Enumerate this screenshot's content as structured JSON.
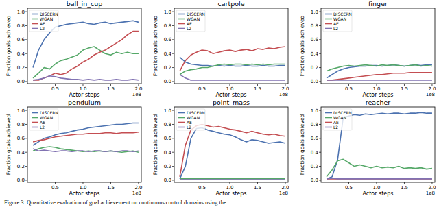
{
  "caption": "Figure 3: Quantitative evaluation of goal achievement on continuous control domains using the",
  "chart_data": [
    {
      "type": "line",
      "title": "ball_in_cup",
      "x_label": "Actor steps",
      "y_label": "Fraction goals achieved",
      "x_scale_label": "1e8",
      "legend": "upper left",
      "xlim": [
        0,
        2.05
      ],
      "ylim": [
        -0.03,
        1.05
      ],
      "xticks": [
        0.5,
        {
          "value": 1,
          "label": "1.0"
        },
        1.5,
        {
          "value": 2,
          "label": "2.0"
        }
      ],
      "yticks": [
        {
          "value": 0,
          "label": "0.0"
        },
        0.2,
        0.4,
        0.6,
        0.8,
        {
          "value": 1,
          "label": "1.0"
        }
      ],
      "x": [
        0.1,
        0.2,
        0.3,
        0.4,
        0.5,
        0.6,
        0.7,
        0.8,
        0.9,
        1.0,
        1.1,
        1.2,
        1.3,
        1.4,
        1.5,
        1.6,
        1.7,
        1.8,
        1.9,
        2.0
      ],
      "series": [
        {
          "name": "DISCERN",
          "color": "#4c72b0",
          "values": [
            0.2,
            0.45,
            0.6,
            0.7,
            0.78,
            0.8,
            0.82,
            0.83,
            0.84,
            0.85,
            0.83,
            0.82,
            0.84,
            0.85,
            0.83,
            0.84,
            0.85,
            0.86,
            0.87,
            0.85
          ]
        },
        {
          "name": "WGAN",
          "color": "#55a868",
          "values": [
            0.05,
            0.12,
            0.2,
            0.18,
            0.25,
            0.3,
            0.32,
            0.35,
            0.38,
            0.45,
            0.48,
            0.5,
            0.45,
            0.4,
            0.38,
            0.42,
            0.4,
            0.42,
            0.4,
            0.4
          ]
        },
        {
          "name": "AE",
          "color": "#c44e52",
          "values": [
            0.02,
            0.02,
            0.05,
            0.08,
            0.12,
            0.1,
            0.12,
            0.18,
            0.22,
            0.28,
            0.32,
            0.38,
            0.42,
            0.45,
            0.5,
            0.55,
            0.6,
            0.67,
            0.72,
            0.72
          ]
        },
        {
          "name": "L2",
          "color": "#8172b2",
          "values": [
            0.02,
            0.03,
            0.05,
            0.08,
            0.07,
            0.05,
            0.04,
            0.03,
            0.03,
            0.02,
            0.03,
            0.02,
            0.03,
            0.02,
            0.02,
            0.03,
            0.02,
            0.02,
            0.03,
            0.02
          ]
        }
      ]
    },
    {
      "type": "line",
      "title": "cartpole",
      "x_label": "Actor steps",
      "y_label": "Fraction goals achieved",
      "x_scale_label": "1e8",
      "legend": "upper left",
      "xlim": [
        0,
        2.05
      ],
      "ylim": [
        -0.03,
        1.05
      ],
      "xticks": [
        0.5,
        {
          "value": 1,
          "label": "1.0"
        },
        1.5,
        {
          "value": 2,
          "label": "2.0"
        }
      ],
      "yticks": [
        {
          "value": 0,
          "label": "0.0"
        },
        0.2,
        0.4,
        0.6,
        0.8,
        {
          "value": 1,
          "label": "1.0"
        }
      ],
      "x": [
        0.1,
        0.2,
        0.3,
        0.4,
        0.5,
        0.6,
        0.7,
        0.8,
        0.9,
        1.0,
        1.1,
        1.2,
        1.3,
        1.4,
        1.5,
        1.6,
        1.7,
        1.8,
        1.9,
        2.0
      ],
      "series": [
        {
          "name": "DISCERN",
          "color": "#4c72b0",
          "values": [
            0.35,
            0.28,
            0.25,
            0.24,
            0.23,
            0.23,
            0.22,
            0.23,
            0.22,
            0.23,
            0.22,
            0.22,
            0.23,
            0.22,
            0.22,
            0.23,
            0.22,
            0.22,
            0.23,
            0.23
          ]
        },
        {
          "name": "WGAN",
          "color": "#55a868",
          "values": [
            0.1,
            0.15,
            0.17,
            0.18,
            0.2,
            0.2,
            0.22,
            0.24,
            0.25,
            0.24,
            0.25,
            0.25,
            0.24,
            0.25,
            0.24,
            0.25,
            0.24,
            0.25,
            0.25,
            0.25
          ]
        },
        {
          "name": "AE",
          "color": "#c44e52",
          "values": [
            0.15,
            0.3,
            0.38,
            0.42,
            0.45,
            0.44,
            0.4,
            0.42,
            0.44,
            0.45,
            0.43,
            0.45,
            0.46,
            0.44,
            0.47,
            0.46,
            0.48,
            0.47,
            0.49,
            0.5
          ]
        },
        {
          "name": "L2",
          "color": "#8172b2",
          "values": [
            0.1,
            0.05,
            0.02,
            0.02,
            0.02,
            0.02,
            0.02,
            0.02,
            0.02,
            0.02,
            0.02,
            0.02,
            0.02,
            0.02,
            0.02,
            0.02,
            0.02,
            0.02,
            0.02,
            0.02
          ]
        }
      ]
    },
    {
      "type": "line",
      "title": "finger",
      "x_label": "Actor steps",
      "y_label": "Fraction goals achieved",
      "x_scale_label": "1e8",
      "legend": "upper left",
      "xlim": [
        0,
        2.05
      ],
      "ylim": [
        -0.03,
        1.05
      ],
      "xticks": [
        0.5,
        {
          "value": 1,
          "label": "1.0"
        },
        1.5,
        {
          "value": 2,
          "label": "2.0"
        }
      ],
      "yticks": [
        {
          "value": 0,
          "label": "0.0"
        },
        0.2,
        0.4,
        0.6,
        0.8,
        {
          "value": 1,
          "label": "1.0"
        }
      ],
      "x": [
        0.1,
        0.2,
        0.3,
        0.4,
        0.5,
        0.6,
        0.7,
        0.8,
        0.9,
        1.0,
        1.1,
        1.2,
        1.3,
        1.4,
        1.5,
        1.6,
        1.7,
        1.8,
        1.9,
        2.0
      ],
      "series": [
        {
          "name": "DISCERN",
          "color": "#4c72b0",
          "values": [
            0.05,
            0.1,
            0.15,
            0.18,
            0.2,
            0.21,
            0.22,
            0.22,
            0.23,
            0.23,
            0.22,
            0.23,
            0.24,
            0.23,
            0.22,
            0.23,
            0.24,
            0.23,
            0.24,
            0.24
          ]
        },
        {
          "name": "WGAN",
          "color": "#55a868",
          "values": [
            0.15,
            0.18,
            0.2,
            0.22,
            0.23,
            0.22,
            0.23,
            0.24,
            0.23,
            0.22,
            0.24,
            0.23,
            0.24,
            0.23,
            0.22,
            0.23,
            0.24,
            0.22,
            0.23,
            0.22
          ]
        },
        {
          "name": "AE",
          "color": "#c44e52",
          "values": [
            0.02,
            0.02,
            0.03,
            0.04,
            0.05,
            0.06,
            0.07,
            0.08,
            0.09,
            0.1,
            0.1,
            0.11,
            0.12,
            0.12,
            0.12,
            0.13,
            0.13,
            0.13,
            0.13,
            0.13
          ]
        },
        {
          "name": "L2",
          "color": "#8172b2",
          "values": [
            0.02,
            0.02,
            0.02,
            0.02,
            0.02,
            0.02,
            0.02,
            0.02,
            0.02,
            0.02,
            0.02,
            0.02,
            0.02,
            0.02,
            0.02,
            0.02,
            0.02,
            0.02,
            0.02,
            0.02
          ]
        }
      ]
    },
    {
      "type": "line",
      "title": "pendulum",
      "x_label": "Actor steps",
      "y_label": "Fraction goals achieved",
      "x_scale_label": "1e8",
      "legend": "upper left",
      "xlim": [
        0,
        2.05
      ],
      "ylim": [
        -0.03,
        1.05
      ],
      "xticks": [
        0.5,
        {
          "value": 1,
          "label": "1.0"
        },
        1.5,
        {
          "value": 2,
          "label": "2.0"
        }
      ],
      "yticks": [
        {
          "value": 0,
          "label": "0.0"
        },
        0.2,
        0.4,
        0.6,
        0.8,
        {
          "value": 1,
          "label": "1.0"
        }
      ],
      "x": [
        0.1,
        0.2,
        0.3,
        0.4,
        0.5,
        0.6,
        0.7,
        0.8,
        0.9,
        1.0,
        1.1,
        1.2,
        1.3,
        1.4,
        1.5,
        1.6,
        1.7,
        1.8,
        1.9,
        2.0
      ],
      "series": [
        {
          "name": "DISCERN",
          "color": "#4c72b0",
          "values": [
            0.5,
            0.55,
            0.6,
            0.62,
            0.65,
            0.67,
            0.68,
            0.7,
            0.72,
            0.73,
            0.75,
            0.76,
            0.77,
            0.78,
            0.79,
            0.8,
            0.8,
            0.81,
            0.82,
            0.82
          ]
        },
        {
          "name": "WGAN",
          "color": "#55a868",
          "values": [
            0.42,
            0.45,
            0.47,
            0.48,
            0.47,
            0.45,
            0.44,
            0.43,
            0.42,
            0.41,
            0.42,
            0.41,
            0.42,
            0.41,
            0.42,
            0.41,
            0.4,
            0.41,
            0.42,
            0.4
          ]
        },
        {
          "name": "AE",
          "color": "#c44e52",
          "values": [
            0.55,
            0.57,
            0.58,
            0.6,
            0.62,
            0.63,
            0.64,
            0.65,
            0.66,
            0.66,
            0.67,
            0.67,
            0.67,
            0.68,
            0.68,
            0.67,
            0.68,
            0.68,
            0.68,
            0.69
          ]
        },
        {
          "name": "L2",
          "color": "#8172b2",
          "values": [
            0.45,
            0.42,
            0.43,
            0.42,
            0.41,
            0.42,
            0.42,
            0.41,
            0.42,
            0.42,
            0.41,
            0.42,
            0.42,
            0.41,
            0.42,
            0.41,
            0.42,
            0.42,
            0.41,
            0.42
          ]
        }
      ]
    },
    {
      "type": "line",
      "title": "point_mass",
      "x_label": "Actor steps",
      "y_label": "Fraction goals achieved",
      "x_scale_label": "1e8",
      "legend": "upper left",
      "xlim": [
        0,
        2.05
      ],
      "ylim": [
        -0.03,
        1.05
      ],
      "xticks": [
        0.5,
        {
          "value": 1,
          "label": "1.0"
        },
        1.5,
        {
          "value": 2,
          "label": "2.0"
        }
      ],
      "yticks": [
        {
          "value": 0,
          "label": "0.0"
        },
        0.2,
        0.4,
        0.6,
        0.8,
        {
          "value": 1,
          "label": "1.0"
        }
      ],
      "x": [
        0.1,
        0.2,
        0.3,
        0.4,
        0.5,
        0.6,
        0.7,
        0.8,
        0.9,
        1.0,
        1.1,
        1.2,
        1.3,
        1.4,
        1.5,
        1.6,
        1.7,
        1.8,
        1.9,
        2.0
      ],
      "series": [
        {
          "name": "DISCERN",
          "color": "#4c72b0",
          "values": [
            0.02,
            0.2,
            0.6,
            0.74,
            0.75,
            0.72,
            0.7,
            0.68,
            0.66,
            0.65,
            0.62,
            0.58,
            0.55,
            0.58,
            0.57,
            0.55,
            0.53,
            0.54,
            0.55,
            0.53
          ]
        },
        {
          "name": "WGAN",
          "color": "#55a868",
          "values": [
            0.02,
            0.02,
            0.02,
            0.02,
            0.02,
            0.02,
            0.02,
            0.02,
            0.02,
            0.02,
            0.02,
            0.02,
            0.02,
            0.02,
            0.02,
            0.02,
            0.02,
            0.02,
            0.02,
            0.02
          ]
        },
        {
          "name": "AE",
          "color": "#c44e52",
          "values": [
            0.05,
            0.5,
            0.72,
            0.78,
            0.8,
            0.78,
            0.76,
            0.77,
            0.75,
            0.73,
            0.72,
            0.7,
            0.68,
            0.7,
            0.68,
            0.66,
            0.65,
            0.66,
            0.64,
            0.63
          ]
        },
        {
          "name": "L2",
          "color": "#8172b2",
          "values": [
            0.01,
            0.01,
            0.01,
            0.01,
            0.01,
            0.01,
            0.01,
            0.01,
            0.01,
            0.01,
            0.01,
            0.01,
            0.01,
            0.01,
            0.01,
            0.01,
            0.01,
            0.01,
            0.01,
            0.01
          ]
        }
      ]
    },
    {
      "type": "line",
      "title": "reacher",
      "x_label": "Actor steps",
      "y_label": "Fraction goals achieved",
      "x_scale_label": "1e8",
      "legend": "upper left",
      "xlim": [
        0,
        2.05
      ],
      "ylim": [
        -0.03,
        1.05
      ],
      "xticks": [
        0.5,
        {
          "value": 1,
          "label": "1.0"
        },
        1.5,
        {
          "value": 2,
          "label": "2.0"
        }
      ],
      "yticks": [
        {
          "value": 0,
          "label": "0.0"
        },
        0.2,
        0.4,
        0.6,
        0.8,
        {
          "value": 1,
          "label": "1.0"
        }
      ],
      "x": [
        0.1,
        0.2,
        0.3,
        0.4,
        0.5,
        0.6,
        0.7,
        0.8,
        0.9,
        1.0,
        1.1,
        1.2,
        1.3,
        1.4,
        1.5,
        1.6,
        1.7,
        1.8,
        1.9,
        2.0
      ],
      "series": [
        {
          "name": "DISCERN",
          "color": "#4c72b0",
          "values": [
            0.02,
            0.05,
            0.3,
            0.9,
            0.92,
            0.94,
            0.93,
            0.95,
            0.94,
            0.95,
            0.96,
            0.95,
            0.96,
            0.96,
            0.95,
            0.96,
            0.96,
            0.97,
            0.96,
            0.96
          ]
        },
        {
          "name": "WGAN",
          "color": "#55a868",
          "values": [
            0.05,
            0.15,
            0.28,
            0.3,
            0.25,
            0.2,
            0.22,
            0.2,
            0.18,
            0.2,
            0.18,
            0.19,
            0.18,
            0.2,
            0.17,
            0.18,
            0.17,
            0.18,
            0.16,
            0.17
          ]
        },
        {
          "name": "AE",
          "color": "#c44e52",
          "values": [
            0.01,
            0.01,
            0.01,
            0.01,
            0.01,
            0.01,
            0.01,
            0.01,
            0.01,
            0.01,
            0.01,
            0.01,
            0.01,
            0.01,
            0.01,
            0.01,
            0.01,
            0.01,
            0.01,
            0.01
          ]
        },
        {
          "name": "L2",
          "color": "#8172b2",
          "values": [
            0.02,
            0.03,
            0.02,
            0.02,
            0.02,
            0.02,
            0.02,
            0.02,
            0.02,
            0.02,
            0.02,
            0.02,
            0.02,
            0.02,
            0.02,
            0.02,
            0.02,
            0.02,
            0.02,
            0.02
          ]
        }
      ]
    }
  ]
}
